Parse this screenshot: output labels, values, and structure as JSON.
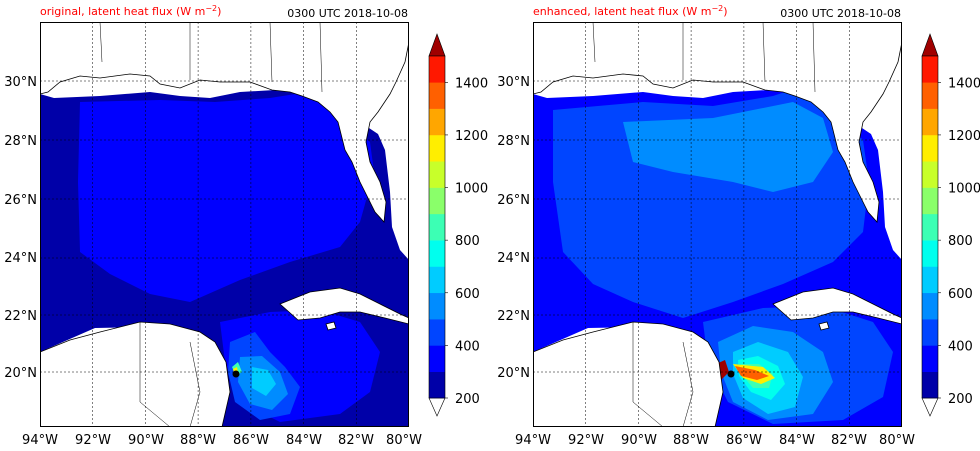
{
  "chart_data": [
    {
      "type": "filled-contour map",
      "title_left": "original, latent heat flux (W m",
      "title_left_sup": "−2",
      "title_left_close": ")",
      "title_right": "0300 UTC 2018-10-08",
      "x_ticks": [
        "94°W",
        "92°W",
        "90°W",
        "88°W",
        "86°W",
        "84°W",
        "82°W",
        "80°W"
      ],
      "y_ticks": [
        "20°N",
        "22°N",
        "24°N",
        "26°N",
        "28°N",
        "30°N"
      ],
      "xlim": [
        -94,
        -80
      ],
      "ylim": [
        18,
        32
      ],
      "grid": true,
      "colorbar": {
        "ticks": [
          "200",
          "400",
          "600",
          "800",
          "1000",
          "1200",
          "1400"
        ],
        "levels": [
          200,
          300,
          400,
          500,
          600,
          700,
          800,
          900,
          1000,
          1100,
          1200,
          1300,
          1400,
          1500
        ],
        "colors": [
          "#0000a8",
          "#0000ff",
          "#0045ff",
          "#008cff",
          "#00ccff",
          "#00ffee",
          "#3cffb4",
          "#8aff6a",
          "#c8ff2a",
          "#ffee00",
          "#ffa600",
          "#ff6000",
          "#ff1800",
          "#c00000"
        ],
        "extend": "both",
        "extend_low_color": "#ffffff",
        "extend_high_color": "#a00000"
      }
    },
    {
      "type": "filled-contour map",
      "title_left": "enhanced, latent heat flux (W m",
      "title_left_sup": "−2",
      "title_left_close": ")",
      "title_right": "0300 UTC 2018-10-08",
      "x_ticks": [
        "94°W",
        "92°W",
        "90°W",
        "88°W",
        "86°W",
        "84°W",
        "82°W",
        "80°W"
      ],
      "y_ticks": [
        "20°N",
        "22°N",
        "24°N",
        "26°N",
        "28°N",
        "30°N"
      ],
      "xlim": [
        -94,
        -80
      ],
      "ylim": [
        18,
        32
      ],
      "grid": true,
      "colorbar": {
        "ticks": [
          "200",
          "400",
          "600",
          "800",
          "1000",
          "1200",
          "1400"
        ],
        "levels": [
          200,
          300,
          400,
          500,
          600,
          700,
          800,
          900,
          1000,
          1100,
          1200,
          1300,
          1400,
          1500
        ],
        "colors": [
          "#0000a8",
          "#0000ff",
          "#0045ff",
          "#008cff",
          "#00ccff",
          "#00ffee",
          "#3cffb4",
          "#8aff6a",
          "#c8ff2a",
          "#ffee00",
          "#ffa600",
          "#ff6000",
          "#ff1800",
          "#c00000"
        ],
        "extend": "both",
        "extend_low_color": "#ffffff",
        "extend_high_color": "#a00000"
      }
    }
  ]
}
